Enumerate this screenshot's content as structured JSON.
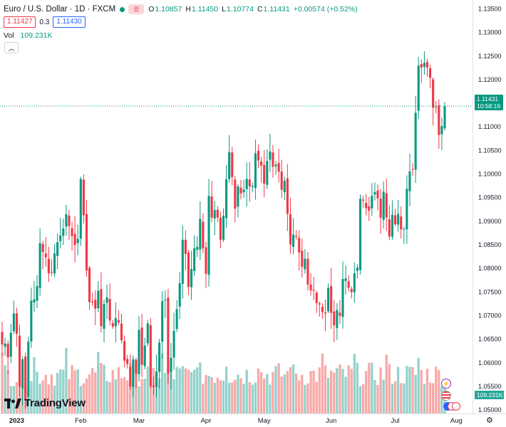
{
  "legend": {
    "symbol_title": "Euro / U.S. Dollar · 1D · FXCM",
    "status_dot_color": "#089981",
    "toggle_icon": "flag-icon",
    "ohlc": [
      {
        "k": "O",
        "v": "1.10857"
      },
      {
        "k": "H",
        "v": "1.11450"
      },
      {
        "k": "L",
        "v": "1.10774"
      },
      {
        "k": "C",
        "v": "1.11431"
      },
      {
        "k": "",
        "v": "+0.00574 (+0.52%)"
      }
    ],
    "sell_price": "1.11427",
    "spread": "0.3",
    "buy_price": "1.11430",
    "volume_label": "Vol",
    "volume_value": "109.231K",
    "collapse_icon": "chevron-up-icon"
  },
  "price_axis": {
    "labels": [
      "1.13500",
      "1.13000",
      "1.12500",
      "1.12000",
      "1.11500",
      "1.11000",
      "1.10500",
      "1.10000",
      "1.09500",
      "1.09000",
      "1.08500",
      "1.08000",
      "1.07500",
      "1.07000",
      "1.06500",
      "1.06000",
      "1.05500",
      "1.05000"
    ],
    "last_price": "1.11431",
    "countdown": "10:58:16",
    "volume_tag": "109.231K"
  },
  "time_axis": {
    "labels": [
      "2023",
      "Feb",
      "Mar",
      "Apr",
      "May",
      "Jun",
      "Jul",
      "Aug"
    ]
  },
  "branding": {
    "name": "TradingView",
    "logo_icon": "tradingview-logo-icon"
  },
  "settings_icon": "gear-icon",
  "colors": {
    "up": "#089981",
    "down": "#f23645",
    "vol_up": "#26a69a",
    "vol_down": "#ef5350",
    "accent": "#2962ff"
  },
  "chart_data": {
    "type": "candlestick",
    "symbol": "EUR/USD",
    "interval": "1D",
    "ylim": [
      1.048,
      1.136
    ],
    "dates": [
      "2022-12-26",
      "2022-12-27",
      "2022-12-28",
      "2022-12-29",
      "2022-12-30",
      "2023-01-02",
      "2023-01-03",
      "2023-01-04",
      "2023-01-05",
      "2023-01-06",
      "2023-01-09",
      "2023-01-10",
      "2023-01-11",
      "2023-01-12",
      "2023-01-13",
      "2023-01-16",
      "2023-01-17",
      "2023-01-18",
      "2023-01-19",
      "2023-01-20",
      "2023-01-23",
      "2023-01-24",
      "2023-01-25",
      "2023-01-26",
      "2023-01-27",
      "2023-01-30",
      "2023-01-31",
      "2023-02-01",
      "2023-02-02",
      "2023-02-03",
      "2023-02-06",
      "2023-02-07",
      "2023-02-08",
      "2023-02-09",
      "2023-02-10",
      "2023-02-13",
      "2023-02-14",
      "2023-02-15",
      "2023-02-16",
      "2023-02-17",
      "2023-02-20",
      "2023-02-21",
      "2023-02-22",
      "2023-02-23",
      "2023-02-24",
      "2023-02-27",
      "2023-02-28",
      "2023-03-01",
      "2023-03-02",
      "2023-03-03",
      "2023-03-06",
      "2023-03-07",
      "2023-03-08",
      "2023-03-09",
      "2023-03-10",
      "2023-03-13",
      "2023-03-14",
      "2023-03-15",
      "2023-03-16",
      "2023-03-17",
      "2023-03-20",
      "2023-03-21",
      "2023-03-22",
      "2023-03-23",
      "2023-03-24",
      "2023-03-27",
      "2023-03-28",
      "2023-03-29",
      "2023-03-30",
      "2023-03-31",
      "2023-04-03",
      "2023-04-04",
      "2023-04-05",
      "2023-04-06",
      "2023-04-07",
      "2023-04-10",
      "2023-04-11",
      "2023-04-12",
      "2023-04-13",
      "2023-04-14",
      "2023-04-17",
      "2023-04-18",
      "2023-04-19",
      "2023-04-20",
      "2023-04-21",
      "2023-04-24",
      "2023-04-25",
      "2023-04-26",
      "2023-04-27",
      "2023-04-28",
      "2023-05-01",
      "2023-05-02",
      "2023-05-03",
      "2023-05-04",
      "2023-05-05",
      "2023-05-08",
      "2023-05-09",
      "2023-05-10",
      "2023-05-11",
      "2023-05-12",
      "2023-05-15",
      "2023-05-16",
      "2023-05-17",
      "2023-05-18",
      "2023-05-19",
      "2023-05-22",
      "2023-05-23",
      "2023-05-24",
      "2023-05-25",
      "2023-05-26",
      "2023-05-29",
      "2023-05-30",
      "2023-05-31",
      "2023-06-01",
      "2023-06-02",
      "2023-06-05",
      "2023-06-06",
      "2023-06-07",
      "2023-06-08",
      "2023-06-09",
      "2023-06-12",
      "2023-06-13",
      "2023-06-14",
      "2023-06-15",
      "2023-06-16",
      "2023-06-19",
      "2023-06-20",
      "2023-06-21",
      "2023-06-22",
      "2023-06-23",
      "2023-06-26",
      "2023-06-27",
      "2023-06-28",
      "2023-06-29",
      "2023-06-30",
      "2023-07-03",
      "2023-07-04",
      "2023-07-05",
      "2023-07-06",
      "2023-07-07",
      "2023-07-10",
      "2023-07-11",
      "2023-07-12",
      "2023-07-13",
      "2023-07-14",
      "2023-07-17",
      "2023-07-18",
      "2023-07-19",
      "2023-07-20",
      "2023-07-21",
      "2023-07-24",
      "2023-07-25",
      "2023-07-26"
    ],
    "close": [
      1.0638,
      1.064,
      1.0611,
      1.0663,
      1.0704,
      1.0661,
      1.0549,
      1.0607,
      1.0522,
      1.0644,
      1.0731,
      1.0734,
      1.0762,
      1.0853,
      1.0834,
      1.0823,
      1.0789,
      1.0792,
      1.0831,
      1.0855,
      1.0869,
      1.0884,
      1.0914,
      1.0889,
      1.0868,
      1.0849,
      1.0862,
      1.0989,
      1.0912,
      1.0795,
      1.0728,
      1.0727,
      1.0714,
      1.0752,
      1.0677,
      1.0724,
      1.0738,
      1.0689,
      1.0676,
      1.0694,
      1.0685,
      1.0647,
      1.0604,
      1.0597,
      1.0549,
      1.0607,
      1.0576,
      1.0669,
      1.0595,
      1.0636,
      1.0683,
      1.055,
      1.0548,
      1.0581,
      1.0642,
      1.073,
      1.0733,
      1.0577,
      1.061,
      1.0667,
      1.0713,
      1.0768,
      1.086,
      1.083,
      1.076,
      1.0798,
      1.0842,
      1.0845,
      1.0904,
      1.0842,
      1.0788,
      1.0953,
      1.0907,
      1.0923,
      1.0907,
      1.086,
      1.0911,
      1.0988,
      1.1046,
      1.0993,
      1.0926,
      1.0973,
      1.0958,
      1.0966,
      1.0989,
      1.0973,
      1.0974,
      1.1043,
      1.1028,
      1.1017,
      1.0979,
      1.1027,
      1.1047,
      1.1015,
      1.1019,
      1.1004,
      1.0966,
      1.0985,
      1.0915,
      1.085,
      1.0871,
      1.0866,
      1.0833,
      1.0803,
      1.082,
      1.0765,
      1.0753,
      1.0753,
      1.0726,
      1.0723,
      1.0707,
      1.0704,
      1.0758,
      1.0705,
      1.0679,
      1.0711,
      1.0699,
      1.0777,
      1.0778,
      1.0758,
      1.0749,
      1.0789,
      1.0801,
      1.0947,
      1.0943,
      1.0927,
      1.0922,
      1.0953,
      1.0961,
      1.0948,
      1.0907,
      1.0962,
      1.0907,
      1.0867,
      1.0913,
      1.0893,
      1.0915,
      1.0882,
      1.0883,
      1.0968,
      1.1005,
      1.101,
      1.1129,
      1.1229,
      1.1225,
      1.1235,
      1.1225,
      1.1203,
      1.114,
      1.114,
      1.1082,
      1.1101,
      1.1143
    ],
    "events": [
      "lightning",
      "us-flag",
      "multiple"
    ]
  }
}
